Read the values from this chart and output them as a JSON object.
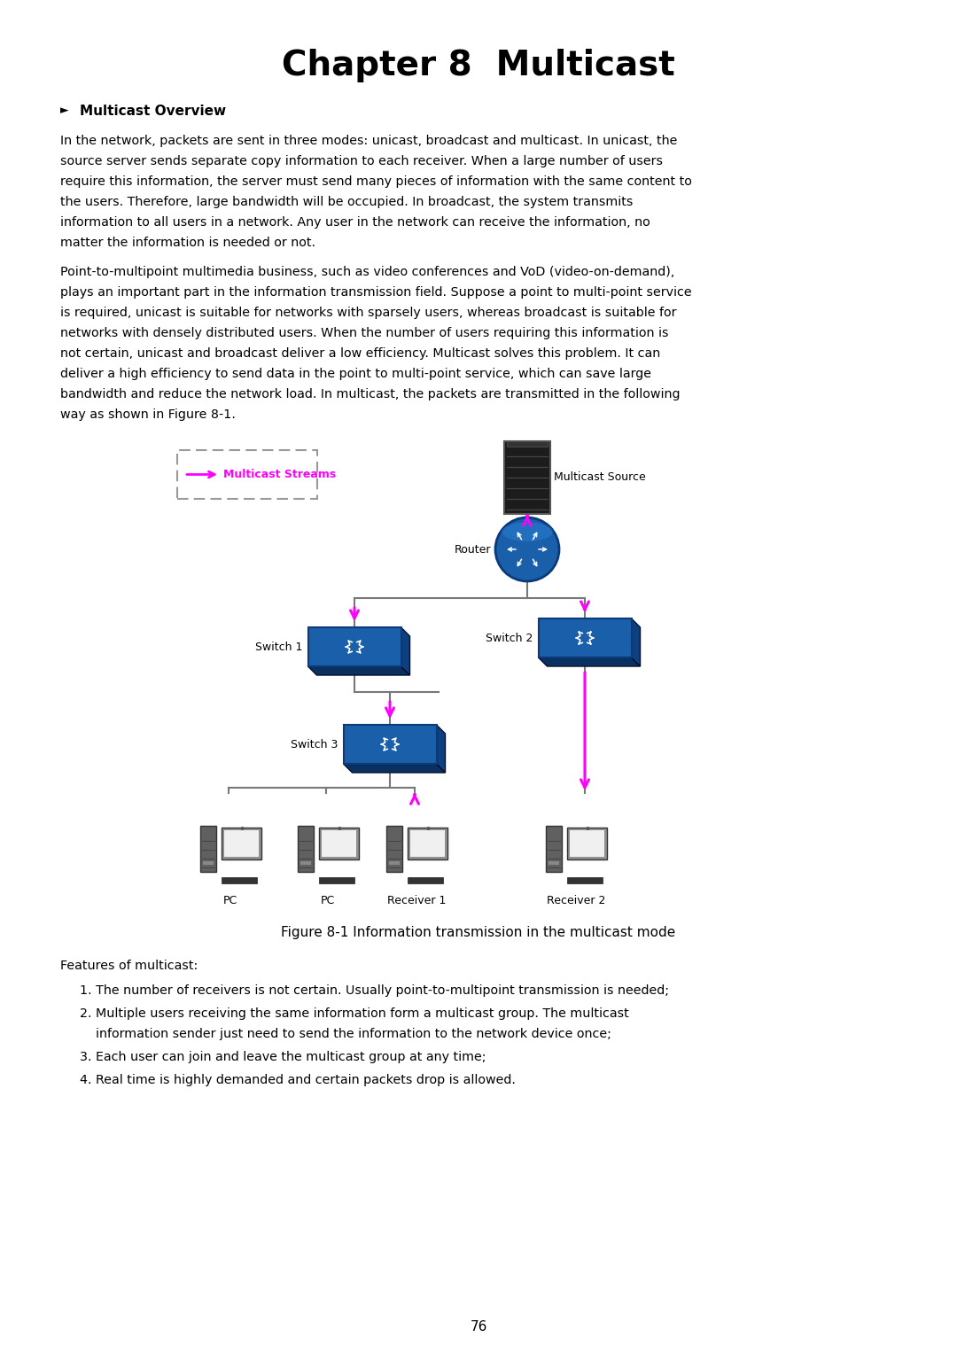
{
  "title": "Chapter 8  Multicast",
  "section_header": "Multicast Overview",
  "para1_lines": [
    "In the network, packets are sent in three modes: unicast, broadcast and multicast. In unicast, the",
    "source server sends separate copy information to each receiver. When a large number of users",
    "require this information, the server must send many pieces of information with the same content to",
    "the users. Therefore, large bandwidth will be occupied. In broadcast, the system transmits",
    "information to all users in a network. Any user in the network can receive the information, no",
    "matter the information is needed or not."
  ],
  "para2_lines": [
    "Point-to-multipoint multimedia business, such as video conferences and VoD (video-on-demand),",
    "plays an important part in the information transmission field. Suppose a point to multi-point service",
    "is required, unicast is suitable for networks with sparsely users, whereas broadcast is suitable for",
    "networks with densely distributed users. When the number of users requiring this information is",
    "not certain, unicast and broadcast deliver a low efficiency. Multicast solves this problem. It can",
    "deliver a high efficiency to send data in the point to multi-point service, which can save large",
    "bandwidth and reduce the network load. In multicast, the packets are transmitted in the following",
    "way as shown in Figure 8-1."
  ],
  "figure_caption": "Figure 8-1 Information transmission in the multicast mode",
  "features_intro": "Features of multicast:",
  "feature1": "1. The number of receivers is not certain. Usually point-to-multipoint transmission is needed;",
  "feature2a": "2. Multiple users receiving the same information form a multicast group. The multicast",
  "feature2b": "    information sender just need to send the information to the network device once;",
  "feature3": "3. Each user can join and leave the multicast group at any time;",
  "feature4": "4. Real time is highly demanded and certain packets drop is allowed.",
  "page_number": "76",
  "bg_color": "#ffffff",
  "text_color": "#000000",
  "magenta": "#ff00ff",
  "blue": "#1a5faa",
  "dark_blue": "#0a3a7a",
  "line_color": "#777777",
  "server_color": "#1c1c1c",
  "server_edge": "#555555"
}
